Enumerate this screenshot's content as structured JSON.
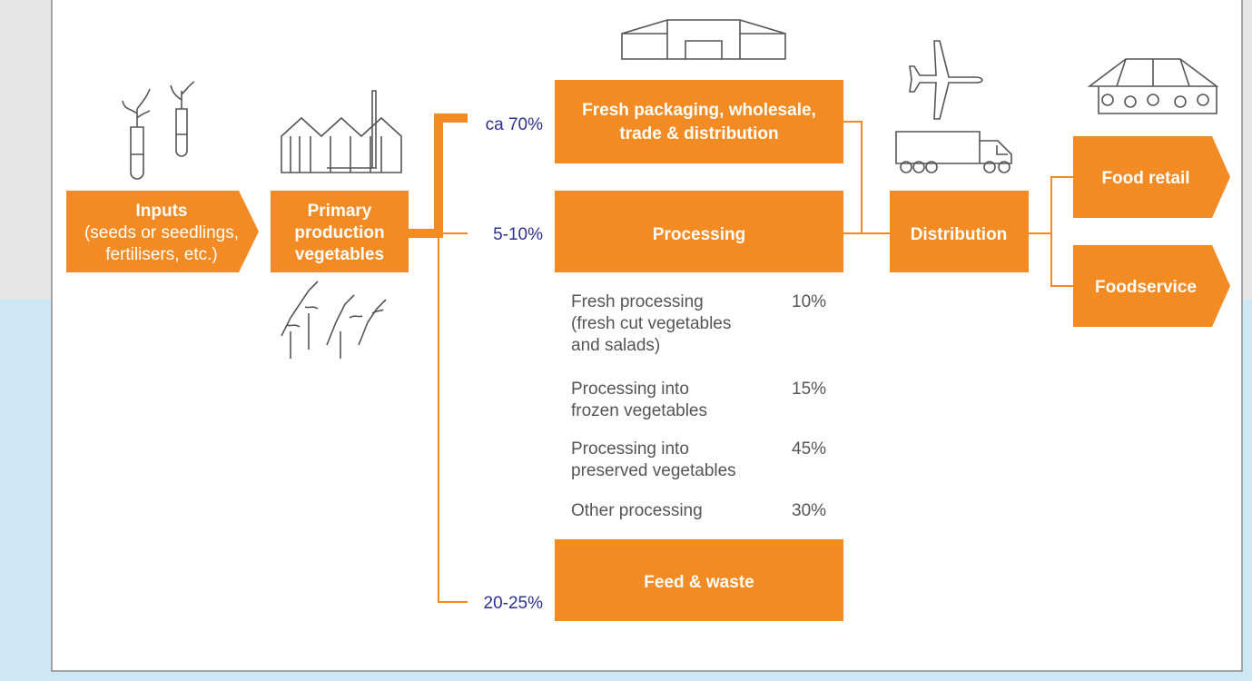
{
  "inputs": {
    "title": "Inputs",
    "detail": [
      "(seeds or seedlings,",
      "fertilisers, etc.)"
    ]
  },
  "primary": {
    "label": [
      "Primary",
      "production",
      "vegetables"
    ]
  },
  "shares": [
    {
      "share": "ca 70%",
      "label": [
        "Fresh packaging, wholesale,",
        "trade & distribution"
      ]
    },
    {
      "share": "5-10%",
      "label": [
        "Processing"
      ]
    },
    {
      "share": "20-25%",
      "label": [
        "Feed & waste"
      ]
    }
  ],
  "processing_breakdown": [
    {
      "label": [
        "Fresh processing",
        "(fresh cut vegetables",
        "and salads)"
      ],
      "share": "10%"
    },
    {
      "label": [
        "Processing into",
        "frozen vegetables"
      ],
      "share": "15%"
    },
    {
      "label": [
        "Processing into",
        "preserved vegetables"
      ],
      "share": "45%"
    },
    {
      "label": [
        "Other processing"
      ],
      "share": "30%"
    }
  ],
  "distribution": "Distribution",
  "outlets": [
    "Food retail",
    "Foodservice"
  ]
}
